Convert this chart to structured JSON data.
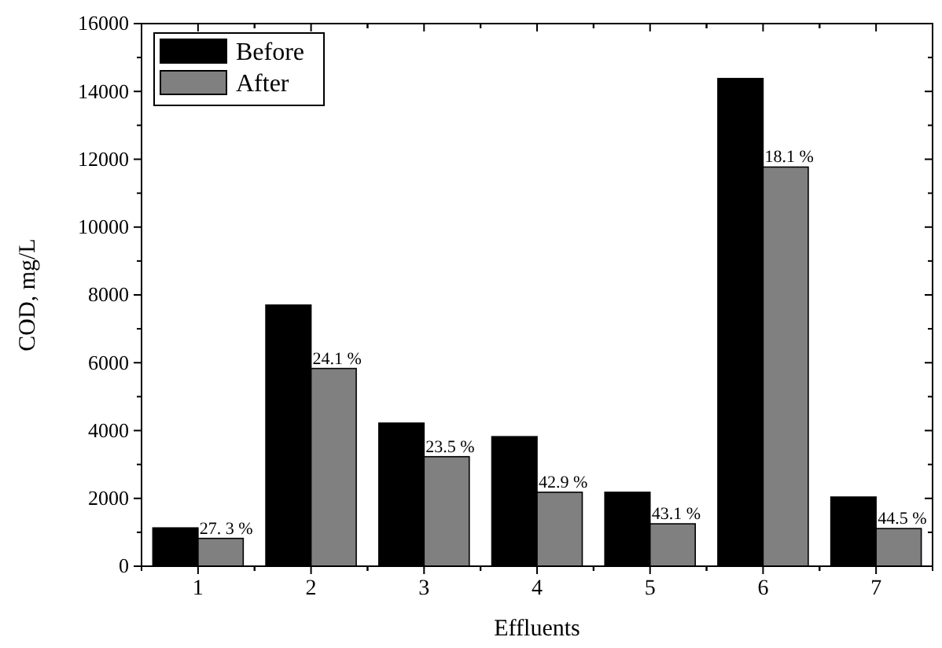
{
  "chart_data": {
    "type": "bar",
    "xlabel": "Effluents",
    "ylabel": "COD, mg/L",
    "categories": [
      "1",
      "2",
      "3",
      "4",
      "5",
      "6",
      "7"
    ],
    "series": [
      {
        "name": "Before",
        "color": "#000000",
        "values": [
          1130,
          7700,
          4220,
          3820,
          2180,
          14380,
          2040
        ]
      },
      {
        "name": "After",
        "color": "#808080",
        "values": [
          820,
          5830,
          3230,
          2180,
          1250,
          11770,
          1110
        ]
      }
    ],
    "ylim": [
      0,
      16000
    ],
    "yticks": [
      0,
      2000,
      4000,
      6000,
      8000,
      10000,
      12000,
      14000,
      16000
    ],
    "legend": "top left",
    "grid": false,
    "annotations": [
      {
        "text": "27. 3 %",
        "x": "1",
        "y": 820
      },
      {
        "text": "24.1 %",
        "x": "2",
        "y": 5830
      },
      {
        "text": "23.5 %",
        "x": "3",
        "y": 3230
      },
      {
        "text": "42.9 %",
        "x": "4",
        "y": 2180
      },
      {
        "text": "43.1 %",
        "x": "5",
        "y": 1250
      },
      {
        "text": "18.1 %",
        "x": "6",
        "y": 11770
      },
      {
        "text": "44.5 %",
        "x": "7",
        "y": 1110
      }
    ]
  }
}
